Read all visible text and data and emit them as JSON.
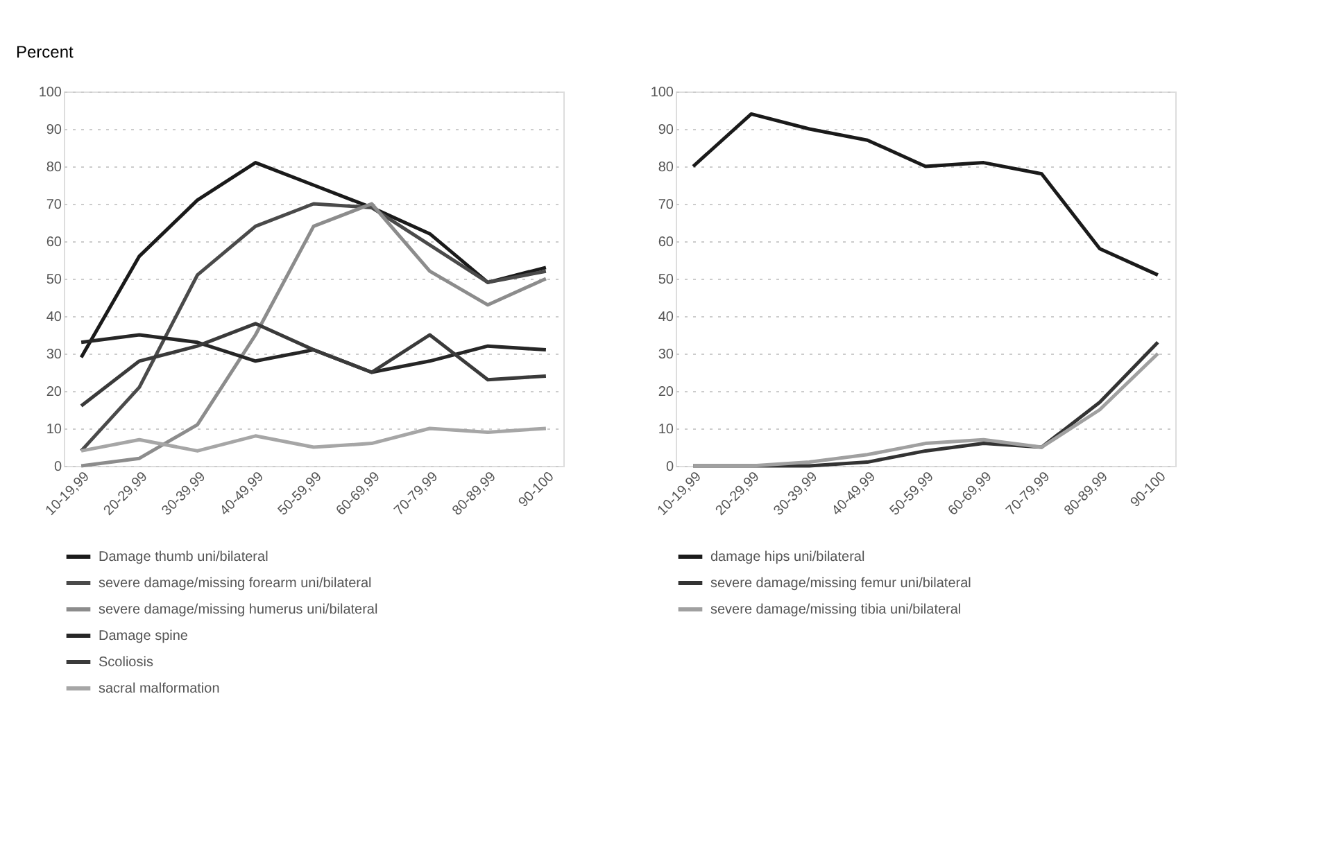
{
  "chart_data": [
    {
      "type": "line",
      "ylabel": "Percent",
      "categories": [
        "10-19,99",
        "20-29,99",
        "30-39,99",
        "40-49,99",
        "50-59,99",
        "60-69,99",
        "70-79,99",
        "80-89,99",
        "90-100"
      ],
      "ylim": [
        0,
        100
      ],
      "yticks": [
        0,
        10,
        20,
        30,
        40,
        50,
        60,
        70,
        80,
        90,
        100
      ],
      "grid": "y",
      "legend": "bottom",
      "marker": "none",
      "line_style": "solid",
      "series": [
        {
          "name": "Damage thumb uni/bilateral",
          "color": "#1a1a1a",
          "values": [
            29,
            56,
            71,
            81,
            75,
            69,
            62,
            49,
            53
          ]
        },
        {
          "name": "severe damage/missing forearm uni/bilateral",
          "color": "#4a4a4a",
          "values": [
            4,
            21,
            51,
            64,
            70,
            69,
            59,
            49,
            52
          ]
        },
        {
          "name": "severe damage/missing humerus uni/bilateral",
          "color": "#8c8c8c",
          "values": [
            0,
            2,
            11,
            35,
            64,
            70,
            52,
            43,
            50
          ]
        },
        {
          "name": "Damage spine",
          "color": "#262626",
          "values": [
            33,
            35,
            33,
            28,
            31,
            25,
            28,
            32,
            31
          ]
        },
        {
          "name": "Scoliosis",
          "color": "#3a3a3a",
          "values": [
            16,
            28,
            32,
            38,
            31,
            25,
            35,
            23,
            24
          ]
        },
        {
          "name": "sacral malformation",
          "color": "#a6a6a6",
          "values": [
            4,
            7,
            4,
            8,
            5,
            6,
            10,
            9,
            10
          ]
        }
      ]
    },
    {
      "type": "line",
      "categories": [
        "10-19,99",
        "20-29,99",
        "30-39,99",
        "40-49,99",
        "50-59,99",
        "60-69,99",
        "70-79,99",
        "80-89,99",
        "90-100"
      ],
      "ylim": [
        0,
        100
      ],
      "yticks": [
        0,
        10,
        20,
        30,
        40,
        50,
        60,
        70,
        80,
        90,
        100
      ],
      "grid": "y",
      "legend": "bottom",
      "marker": "none",
      "line_style": "solid",
      "series": [
        {
          "name": "damage hips uni/bilateral",
          "color": "#1a1a1a",
          "values": [
            80,
            94,
            90,
            87,
            80,
            81,
            78,
            58,
            51
          ]
        },
        {
          "name": "severe damage/missing femur uni/bilateral",
          "color": "#333333",
          "values": [
            0,
            0,
            0,
            1,
            4,
            6,
            5,
            17,
            33
          ]
        },
        {
          "name": "severe damage/missing tibia uni/bilateral",
          "color": "#a0a0a0",
          "values": [
            0,
            0,
            1,
            3,
            6,
            7,
            5,
            15,
            30
          ]
        }
      ]
    }
  ]
}
